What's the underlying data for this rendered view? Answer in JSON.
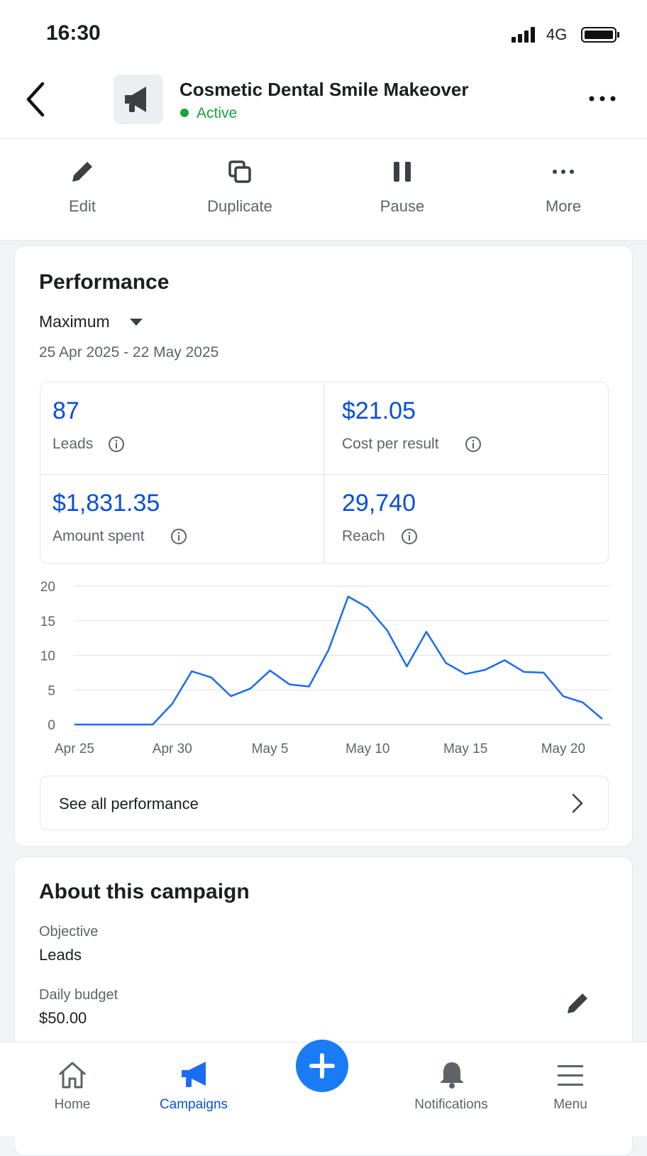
{
  "status_bar": {
    "time": "16:30",
    "network": "4G"
  },
  "header": {
    "title": "Cosmetic Dental Smile Makeover",
    "status": "Active"
  },
  "actions": [
    "Edit",
    "Duplicate",
    "Pause",
    "More"
  ],
  "performance": {
    "title": "Performance",
    "range_selector": "Maximum",
    "date_range": "25 Apr 2025 - 22 May 2025",
    "metrics": [
      {
        "value": "87",
        "label": "Leads"
      },
      {
        "value": "$21.05",
        "label": "Cost per result"
      },
      {
        "value": "$1,831.35",
        "label": "Amount spent"
      },
      {
        "value": "29,740",
        "label": "Reach"
      }
    ],
    "see_all": "See all performance"
  },
  "chart_data": {
    "type": "line",
    "categories": [
      "Apr 25",
      null,
      null,
      null,
      null,
      "Apr 30",
      null,
      null,
      null,
      null,
      "May 5",
      null,
      null,
      null,
      null,
      "May 10",
      null,
      null,
      null,
      null,
      "May 15",
      null,
      null,
      null,
      null,
      "May 20",
      null,
      null
    ],
    "series": [
      {
        "name": null,
        "color": "#1a6cf0",
        "values": [
          0,
          0,
          0,
          0,
          0,
          3,
          7.7,
          6.8,
          4.1,
          5.2,
          7.8,
          5.8,
          5.5,
          10.8,
          18.5,
          16.9,
          13.6,
          8.4,
          13.4,
          8.9,
          7.3,
          7.9,
          9.3,
          7.6,
          7.5,
          4.1,
          3.2,
          0.8
        ]
      }
    ],
    "ylim": [
      0,
      20
    ],
    "yticks": [
      0,
      5,
      10,
      15,
      20
    ],
    "grid": true
  },
  "about": {
    "title": "About this campaign",
    "objective_label": "Objective",
    "objective": "Leads",
    "budget_label": "Daily budget",
    "budget": "$50.00"
  },
  "nav": [
    "Home",
    "Campaigns",
    "Notifications",
    "Menu"
  ]
}
